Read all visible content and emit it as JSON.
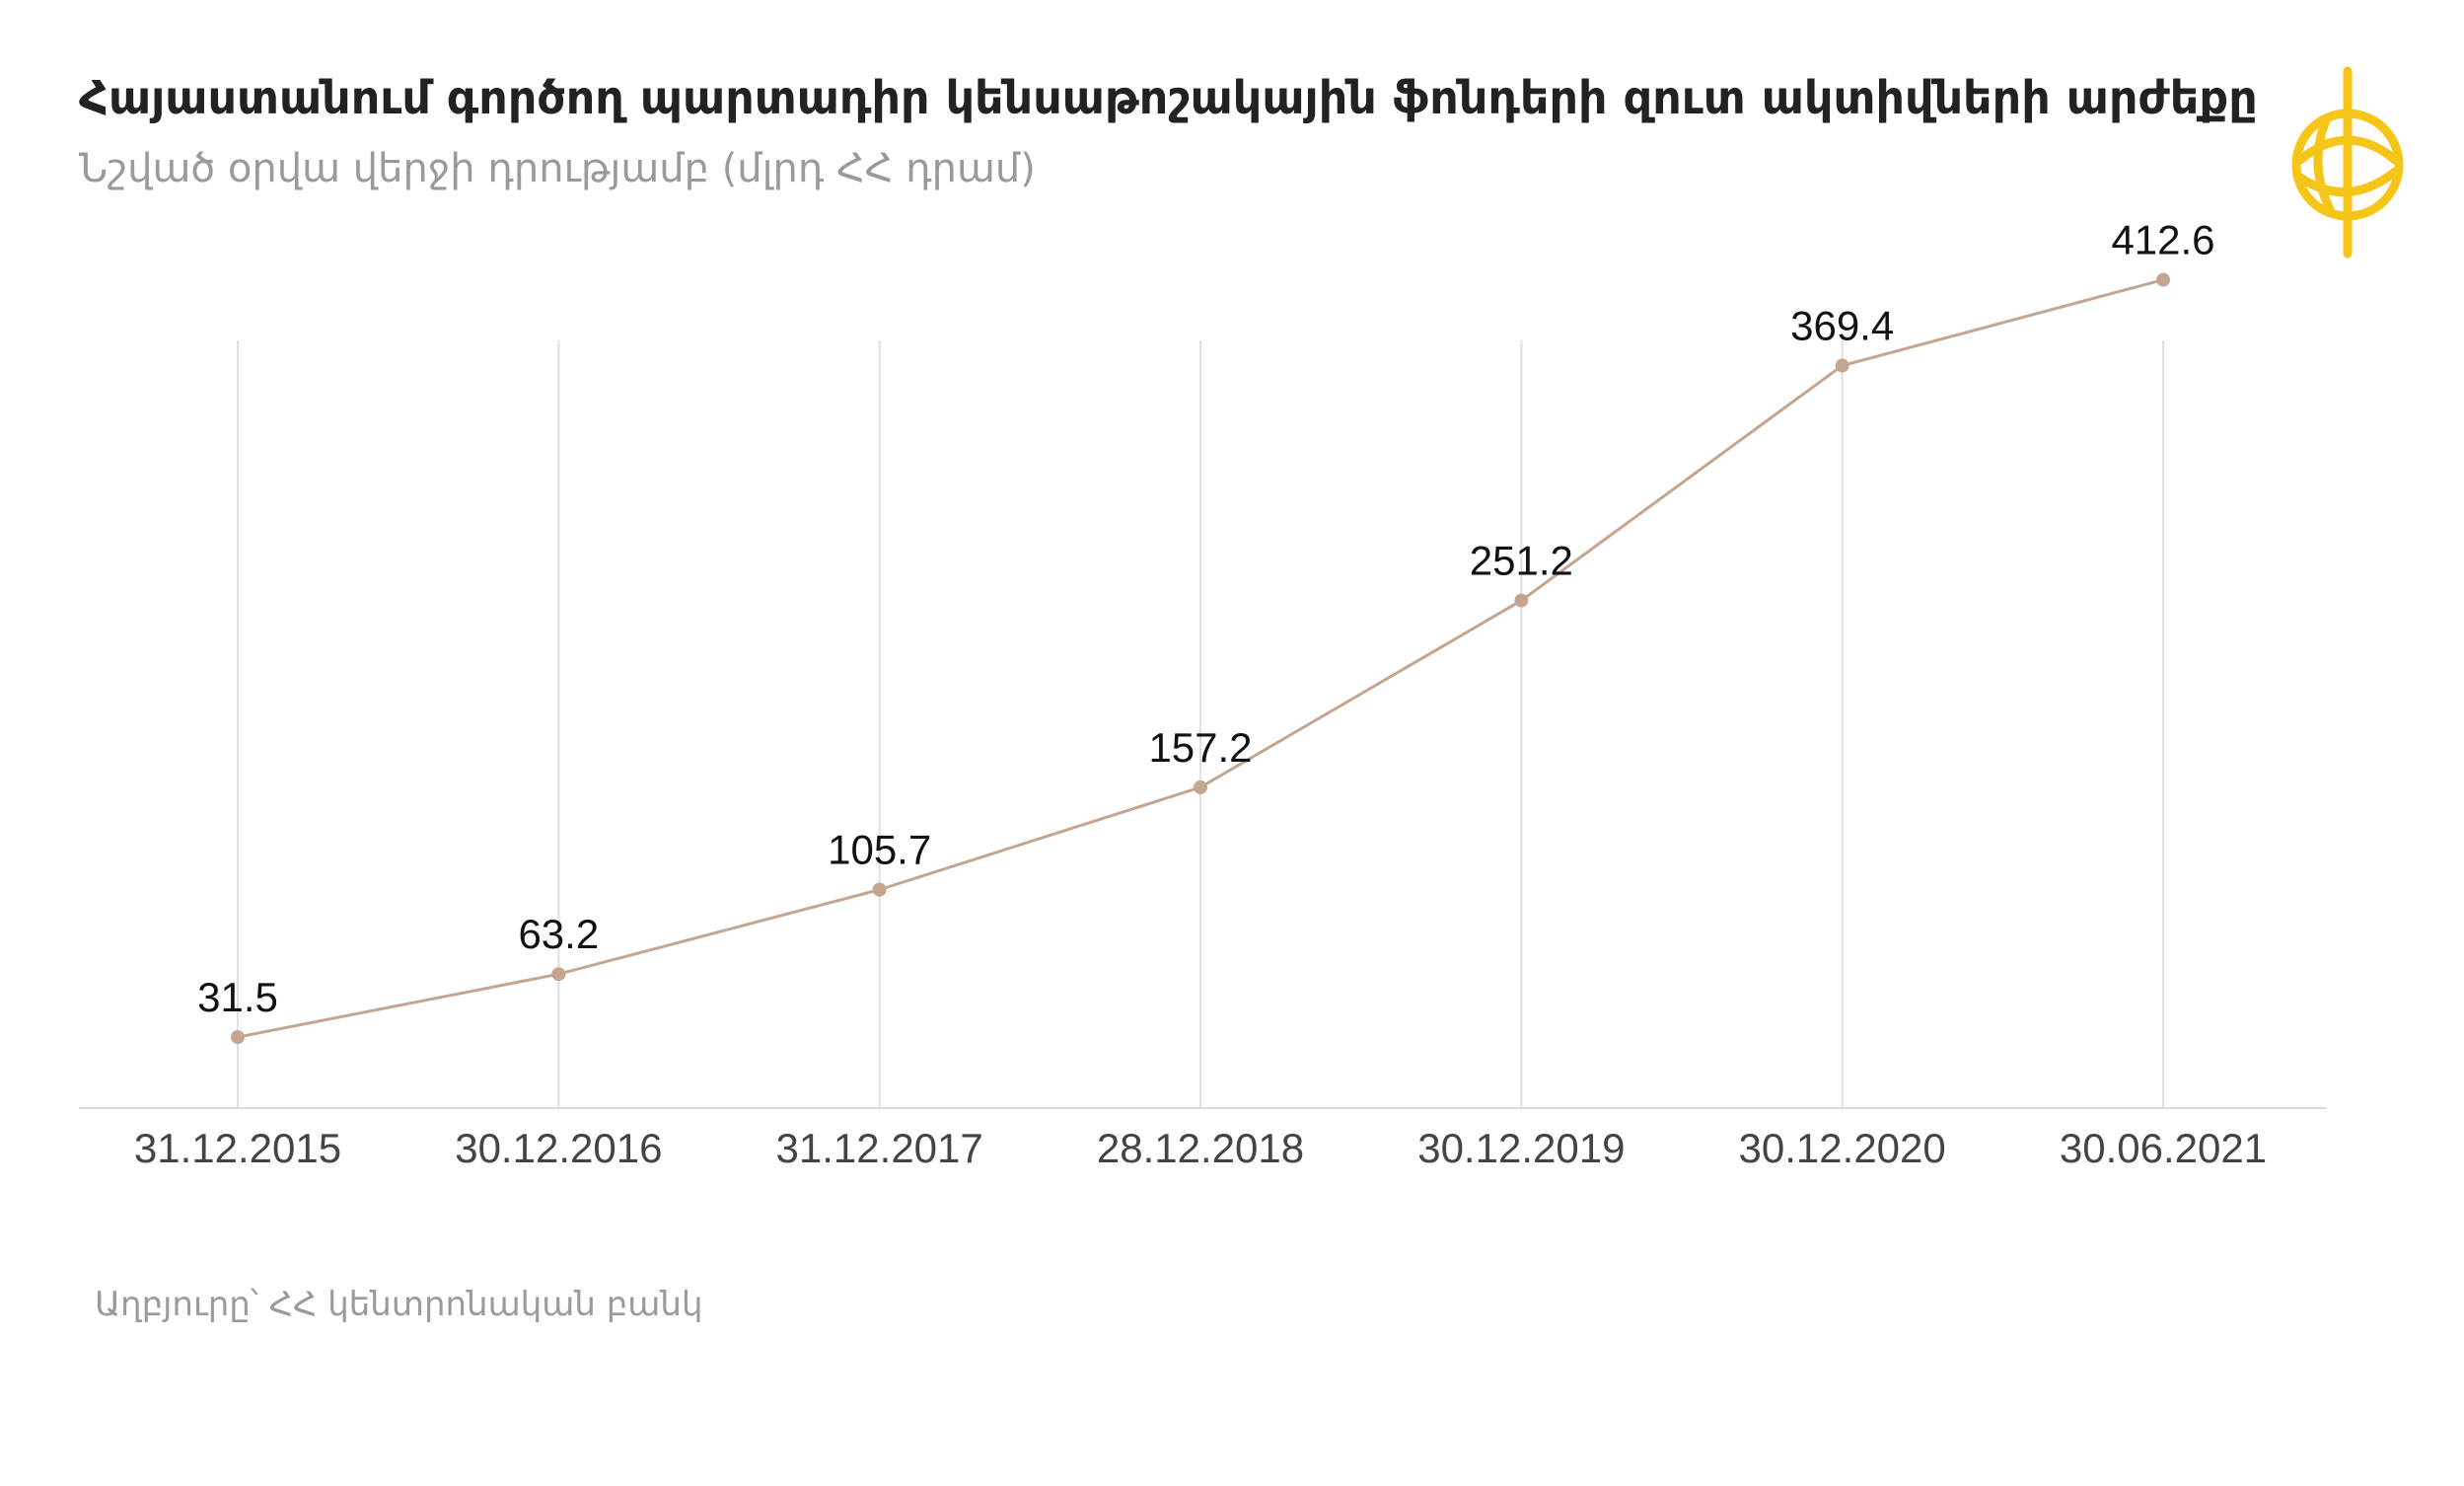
{
  "header": {
    "title": "Հայաստանում գործող պարտադիր կենսաթոշակային ֆոնդերի զուտ ակտիվների արժեքը",
    "subtitle": "Նշված օրվա վերջի դրությամբ (մլրդ ՀՀ դրամ)"
  },
  "footer": {
    "source": "Աղբյուրը՝ ՀՀ կենտրոնական բանկ"
  },
  "logo": {
    "icon": "gold-emblem-icon",
    "color": "#F5C518"
  },
  "colors": {
    "line": "#C4A58F",
    "grid": "#E0E0E0",
    "axis": "#D9D9D9",
    "label": "#111111",
    "tick": "#444444"
  },
  "chart_data": {
    "type": "line",
    "categories": [
      "31.12.2015",
      "30.12.2016",
      "31.12.2017",
      "28.12.2018",
      "30.12.2019",
      "30.12.2020",
      "30.06.2021"
    ],
    "series": [
      {
        "values": [
          31.5,
          63.2,
          105.7,
          157.2,
          251.2,
          369.4,
          412.6
        ]
      }
    ],
    "data_labels": [
      "31.5",
      "63.2",
      "105.7",
      "157.2",
      "251.2",
      "369.4",
      "412.6"
    ],
    "ylim": [
      0,
      450
    ],
    "grid": "vertical",
    "legend": "none"
  }
}
